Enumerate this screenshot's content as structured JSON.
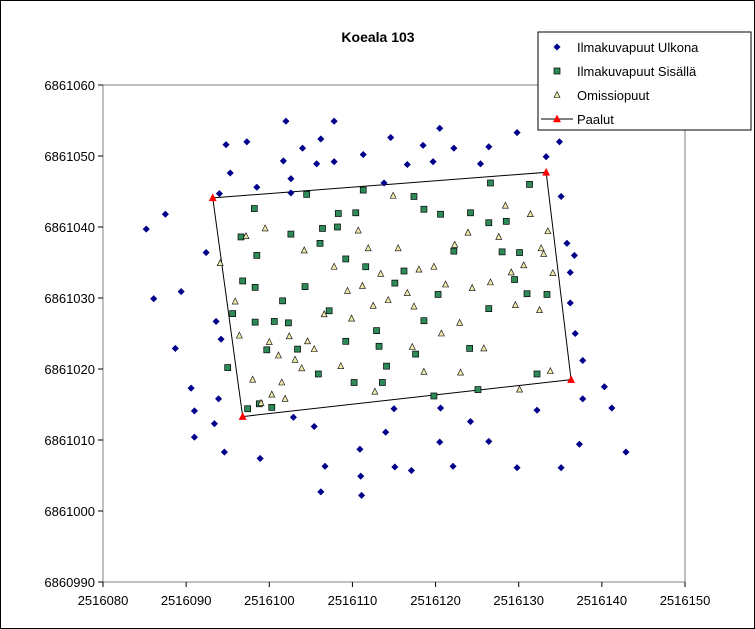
{
  "chart_data": {
    "type": "scatter",
    "title": "Koeala 103",
    "xlabel": "",
    "ylabel": "",
    "xlim": [
      2516080,
      2516150
    ],
    "ylim": [
      6860990,
      6861060
    ],
    "x_ticks": [
      "2516080",
      "2516090",
      "2516100",
      "2516110",
      "2516120",
      "2516130",
      "2516140",
      "2516150"
    ],
    "y_ticks": [
      "6861060",
      "6861050",
      "6861040",
      "6861030",
      "6861020",
      "6861010",
      "6861000",
      "6860990"
    ],
    "grid": false,
    "legend_position": "top-right",
    "series": [
      {
        "name": "Ilmakuvapuut Ulkona",
        "marker": "diamond",
        "color": "#00008B",
        "points": [
          [
            2516085.2,
            6861039.7
          ],
          [
            2516086.1,
            6861029.9
          ],
          [
            2516087.5,
            6861041.8
          ],
          [
            2516088.7,
            6861022.9
          ],
          [
            2516089.4,
            6861030.9
          ],
          [
            2516090.6,
            6861017.3
          ],
          [
            2516091.0,
            6861014.1
          ],
          [
            2516091.0,
            6861010.4
          ],
          [
            2516092.4,
            6861036.4
          ],
          [
            2516093.4,
            6861012.3
          ],
          [
            2516093.6,
            6861026.7
          ],
          [
            2516093.9,
            6861015.8
          ],
          [
            2516094.0,
            6861044.7
          ],
          [
            2516094.2,
            6861024.2
          ],
          [
            2516094.6,
            6861008.3
          ],
          [
            2516094.8,
            6861051.6
          ],
          [
            2516095.3,
            6861047.6
          ],
          [
            2516097.3,
            6861052.0
          ],
          [
            2516098.5,
            6861045.6
          ],
          [
            2516098.9,
            6861007.4
          ],
          [
            2516101.7,
            6861049.3
          ],
          [
            2516102.0,
            6861054.9
          ],
          [
            2516102.6,
            6861046.8
          ],
          [
            2516102.6,
            6861044.8
          ],
          [
            2516102.9,
            6861013.2
          ],
          [
            2516104.0,
            6861051.1
          ],
          [
            2516105.4,
            6861011.9
          ],
          [
            2516105.7,
            6861048.9
          ],
          [
            2516106.2,
            6861052.4
          ],
          [
            2516106.2,
            6861002.7
          ],
          [
            2516106.7,
            6861006.3
          ],
          [
            2516107.8,
            6861054.9
          ],
          [
            2516107.8,
            6861049.2
          ],
          [
            2516110.9,
            6861008.7
          ],
          [
            2516111.0,
            6861004.9
          ],
          [
            2516111.1,
            6861002.2
          ],
          [
            2516111.3,
            6861050.2
          ],
          [
            2516113.8,
            6861046.2
          ],
          [
            2516114.0,
            6861011.1
          ],
          [
            2516114.6,
            6861052.6
          ],
          [
            2516115.0,
            6861014.4
          ],
          [
            2516115.1,
            6861006.2
          ],
          [
            2516116.6,
            6861048.8
          ],
          [
            2516117.1,
            6861005.7
          ],
          [
            2516118.5,
            6861051.5
          ],
          [
            2516119.7,
            6861049.2
          ],
          [
            2516120.5,
            6861053.9
          ],
          [
            2516120.5,
            6861009.7
          ],
          [
            2516120.6,
            6861014.5
          ],
          [
            2516122.2,
            6861051.1
          ],
          [
            2516122.1,
            6861006.3
          ],
          [
            2516124.2,
            6861012.6
          ],
          [
            2516125.4,
            6861048.9
          ],
          [
            2516126.4,
            6861051.3
          ],
          [
            2516126.4,
            6861009.8
          ],
          [
            2516129.8,
            6861053.3
          ],
          [
            2516129.8,
            6861006.1
          ],
          [
            2516132.2,
            6861014.2
          ],
          [
            2516133.3,
            6861049.9
          ],
          [
            2516134.9,
            6861052.0
          ],
          [
            2516135.1,
            6861044.3
          ],
          [
            2516135.1,
            6861006.1
          ],
          [
            2516135.8,
            6861037.7
          ],
          [
            2516136.2,
            6861033.6
          ],
          [
            2516136.2,
            6861029.3
          ],
          [
            2516136.7,
            6861036.0
          ],
          [
            2516136.8,
            6861025.0
          ],
          [
            2516137.3,
            6861009.4
          ],
          [
            2516137.7,
            6861021.2
          ],
          [
            2516137.7,
            6861015.8
          ],
          [
            2516140.3,
            6861017.5
          ],
          [
            2516141.2,
            6861014.5
          ],
          [
            2516142.9,
            6861008.3
          ]
        ]
      },
      {
        "name": "Ilmakuvapuut Sisällä",
        "marker": "square",
        "color": "#2E8B57",
        "points": [
          [
            2516095.0,
            6861020.2
          ],
          [
            2516095.6,
            6861027.8
          ],
          [
            2516096.6,
            6861038.6
          ],
          [
            2516096.8,
            6861032.4
          ],
          [
            2516097.4,
            6861014.4
          ],
          [
            2516098.2,
            6861042.6
          ],
          [
            2516098.3,
            6861031.5
          ],
          [
            2516098.3,
            6861026.6
          ],
          [
            2516098.5,
            6861036.0
          ],
          [
            2516098.8,
            6861015.1
          ],
          [
            2516099.7,
            6861022.7
          ],
          [
            2516100.3,
            6861014.6
          ],
          [
            2516100.6,
            6861026.7
          ],
          [
            2516101.6,
            6861029.6
          ],
          [
            2516102.3,
            6861026.5
          ],
          [
            2516102.6,
            6861039.0
          ],
          [
            2516103.4,
            6861022.8
          ],
          [
            2516104.3,
            6861031.6
          ],
          [
            2516104.5,
            6861044.6
          ],
          [
            2516105.9,
            6861019.3
          ],
          [
            2516106.1,
            6861037.7
          ],
          [
            2516106.4,
            6861039.8
          ],
          [
            2516107.2,
            6861028.2
          ],
          [
            2516108.2,
            6861040.0
          ],
          [
            2516108.3,
            6861041.9
          ],
          [
            2516109.2,
            6861023.9
          ],
          [
            2516109.2,
            6861035.5
          ],
          [
            2516110.2,
            6861018.1
          ],
          [
            2516110.4,
            6861042.0
          ],
          [
            2516111.3,
            6861045.2
          ],
          [
            2516111.6,
            6861034.4
          ],
          [
            2516112.9,
            6861025.4
          ],
          [
            2516113.2,
            6861023.2
          ],
          [
            2516113.6,
            6861018.1
          ],
          [
            2516114.1,
            6861020.4
          ],
          [
            2516115.1,
            6861032.1
          ],
          [
            2516116.2,
            6861033.8
          ],
          [
            2516117.4,
            6861044.3
          ],
          [
            2516117.6,
            6861022.1
          ],
          [
            2516118.6,
            6861026.8
          ],
          [
            2516118.6,
            6861042.5
          ],
          [
            2516119.8,
            6861016.2
          ],
          [
            2516120.3,
            6861030.5
          ],
          [
            2516120.6,
            6861041.8
          ],
          [
            2516122.2,
            6861036.6
          ],
          [
            2516124.1,
            6861022.9
          ],
          [
            2516124.2,
            6861042.0
          ],
          [
            2516125.1,
            6861017.1
          ],
          [
            2516126.4,
            6861028.5
          ],
          [
            2516126.4,
            6861040.6
          ],
          [
            2516126.6,
            6861046.2
          ],
          [
            2516128.0,
            6861036.5
          ],
          [
            2516128.5,
            6861040.8
          ],
          [
            2516129.5,
            6861032.6
          ],
          [
            2516130.1,
            6861036.4
          ],
          [
            2516131.0,
            6861030.6
          ],
          [
            2516131.3,
            6861046.0
          ],
          [
            2516132.2,
            6861019.3
          ],
          [
            2516133.4,
            6861030.5
          ]
        ]
      },
      {
        "name": "Omissiopuut",
        "marker": "triangle",
        "color": "#EEE8AA",
        "points": [
          [
            2516094.1,
            6861034.9
          ],
          [
            2516095.9,
            6861029.5
          ],
          [
            2516096.4,
            6861024.7
          ],
          [
            2516097.2,
            6861038.7
          ],
          [
            2516098.0,
            6861018.5
          ],
          [
            2516099.0,
            6861015.2
          ],
          [
            2516099.5,
            6861039.8
          ],
          [
            2516100.0,
            6861023.8
          ],
          [
            2516100.3,
            6861016.4
          ],
          [
            2516101.1,
            6861021.9
          ],
          [
            2516101.5,
            6861018.1
          ],
          [
            2516101.9,
            6861015.8
          ],
          [
            2516102.4,
            6861024.6
          ],
          [
            2516103.1,
            6861021.3
          ],
          [
            2516103.9,
            6861020.1
          ],
          [
            2516104.2,
            6861036.7
          ],
          [
            2516104.6,
            6861023.9
          ],
          [
            2516105.4,
            6861022.8
          ],
          [
            2516106.6,
            6861027.7
          ],
          [
            2516107.8,
            6861034.4
          ],
          [
            2516108.6,
            6861020.4
          ],
          [
            2516109.4,
            6861031.0
          ],
          [
            2516109.9,
            6861027.1
          ],
          [
            2516110.7,
            6861039.5
          ],
          [
            2516111.2,
            6861031.7
          ],
          [
            2516111.9,
            6861037.0
          ],
          [
            2516112.5,
            6861028.9
          ],
          [
            2516112.7,
            6861016.8
          ],
          [
            2516113.4,
            6861033.4
          ],
          [
            2516114.3,
            6861029.7
          ],
          [
            2516114.9,
            6861044.4
          ],
          [
            2516115.5,
            6861037.0
          ],
          [
            2516116.6,
            6861030.7
          ],
          [
            2516117.2,
            6861023.1
          ],
          [
            2516117.4,
            6861028.8
          ],
          [
            2516118.0,
            6861034.0
          ],
          [
            2516118.6,
            6861019.6
          ],
          [
            2516119.8,
            6861034.4
          ],
          [
            2516120.7,
            6861025.0
          ],
          [
            2516121.2,
            6861031.9
          ],
          [
            2516122.3,
            6861037.5
          ],
          [
            2516122.9,
            6861026.5
          ],
          [
            2516123.0,
            6861019.5
          ],
          [
            2516123.9,
            6861039.2
          ],
          [
            2516124.4,
            6861031.4
          ],
          [
            2516125.8,
            6861022.9
          ],
          [
            2516126.6,
            6861032.2
          ],
          [
            2516127.6,
            6861038.6
          ],
          [
            2516128.4,
            6861043.0
          ],
          [
            2516129.1,
            6861033.6
          ],
          [
            2516129.6,
            6861029.0
          ],
          [
            2516130.1,
            6861017.1
          ],
          [
            2516130.6,
            6861034.6
          ],
          [
            2516131.4,
            6861041.8
          ],
          [
            2516132.5,
            6861028.3
          ],
          [
            2516132.7,
            6861037.0
          ],
          [
            2516133.0,
            6861036.2
          ],
          [
            2516133.5,
            6861039.4
          ],
          [
            2516133.8,
            6861019.7
          ],
          [
            2516134.1,
            6861033.5
          ]
        ]
      },
      {
        "name": "Paalut",
        "marker": "triangle-line",
        "color": "#FF0000",
        "points": [
          [
            2516093.2,
            6861044.1
          ],
          [
            2516133.3,
            6861047.7
          ],
          [
            2516136.3,
            6861018.5
          ],
          [
            2516096.8,
            6861013.3
          ],
          [
            2516093.2,
            6861044.1
          ]
        ]
      }
    ]
  }
}
